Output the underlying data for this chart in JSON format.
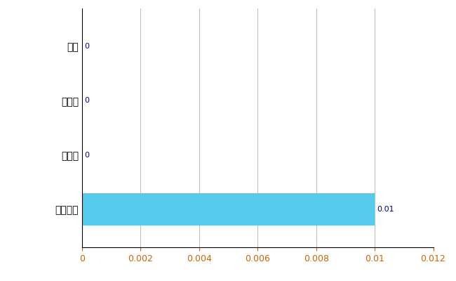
{
  "categories": [
    "全国平均",
    "県最大",
    "県平均",
    "泉区"
  ],
  "values": [
    0.01,
    0,
    0,
    0
  ],
  "bar_color": "#55CCEE",
  "value_labels": [
    "0.01",
    "0",
    "0",
    "0"
  ],
  "xlim": [
    0,
    0.012
  ],
  "xticks": [
    0,
    0.002,
    0.004,
    0.006,
    0.008,
    0.01,
    0.012
  ],
  "grid_color": "#BBBBBB",
  "background_color": "#FFFFFF",
  "tick_label_color": "#CC6600",
  "value_label_color": "#000080",
  "y_label_color": "#000000",
  "bar_height": 0.6,
  "figsize": [
    6.5,
    4.0
  ],
  "dpi": 100
}
